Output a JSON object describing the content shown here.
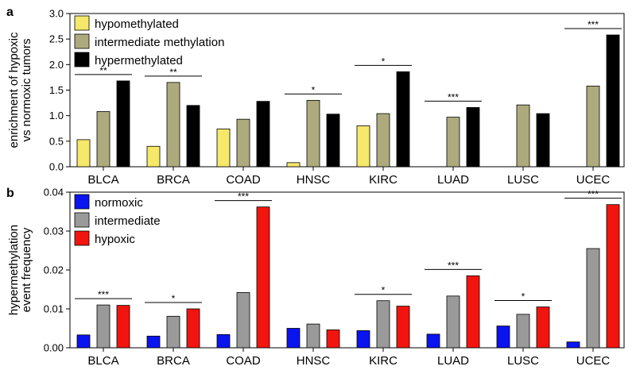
{
  "chart_data": [
    {
      "panel": "a",
      "type": "bar",
      "ylabel_lines": [
        "enrichment of hypoxic",
        "vs normoxic tumors"
      ],
      "ylim": [
        0,
        3.0
      ],
      "yticks": [
        "0.0",
        "0.5",
        "1.0",
        "1.5",
        "2.0",
        "2.5",
        "3.0"
      ],
      "categories": [
        "BLCA",
        "BRCA",
        "COAD",
        "HNSC",
        "KIRC",
        "LUAD",
        "LUSC",
        "UCEC"
      ],
      "series": [
        {
          "name": "hypomethylated",
          "color": "#f5e86a",
          "values": [
            0.53,
            0.4,
            0.74,
            0.08,
            0.8,
            null,
            null,
            null
          ]
        },
        {
          "name": "intermediate methylation",
          "color": "#adab7d",
          "values": [
            1.08,
            1.65,
            0.93,
            1.3,
            1.04,
            0.97,
            1.21,
            1.58
          ]
        },
        {
          "name": "hypermethylated",
          "color": "#000000",
          "values": [
            1.68,
            1.2,
            1.28,
            1.03,
            1.86,
            1.16,
            1.04,
            2.58
          ]
        }
      ],
      "significance": [
        "**",
        "**",
        "",
        "*",
        "*",
        "***",
        "",
        "***"
      ]
    },
    {
      "panel": "b",
      "type": "bar",
      "ylabel_lines": [
        "hypermethylation",
        "event frequency"
      ],
      "ylim": [
        0,
        0.04
      ],
      "yticks": [
        "0.00",
        "0.01",
        "0.02",
        "0.03",
        "0.04"
      ],
      "categories": [
        "BLCA",
        "BRCA",
        "COAD",
        "HNSC",
        "KIRC",
        "LUAD",
        "LUSC",
        "UCEC"
      ],
      "series": [
        {
          "name": "normoxic",
          "color": "#0a14ee",
          "values": [
            0.0033,
            0.003,
            0.0034,
            0.005,
            0.0044,
            0.0035,
            0.0056,
            0.0015
          ]
        },
        {
          "name": "intermediate",
          "color": "#9a9a9a",
          "values": [
            0.011,
            0.0081,
            0.0142,
            0.0061,
            0.0121,
            0.0133,
            0.0086,
            0.0255
          ]
        },
        {
          "name": "hypoxic",
          "color": "#f2150f",
          "values": [
            0.0109,
            0.01,
            0.0362,
            0.0046,
            0.0107,
            0.0185,
            0.0105,
            0.0368
          ]
        }
      ],
      "significance": [
        "***",
        "*",
        "***",
        "",
        "*",
        "***",
        "*",
        "***"
      ]
    }
  ]
}
